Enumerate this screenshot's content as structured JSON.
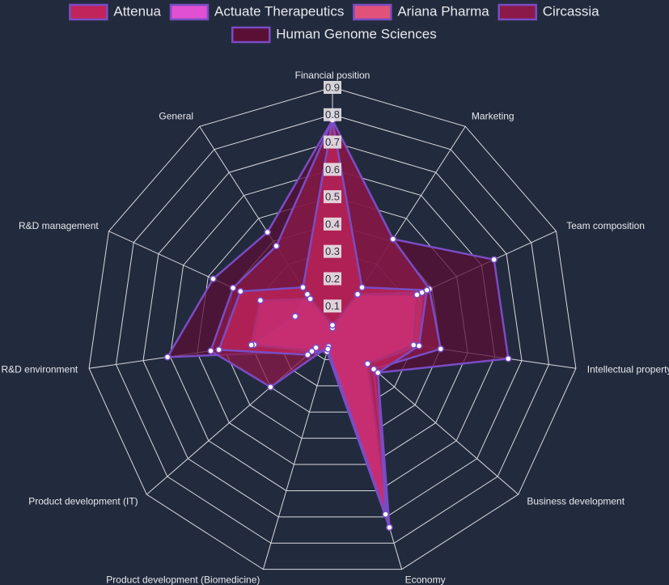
{
  "chart_data": {
    "type": "radar",
    "categories": [
      "Financial position",
      "Marketing",
      "Team composition",
      "Intellectual property",
      "Business development",
      "Economy",
      "Product development (Biomedicine)",
      "Product development (IT)",
      "R&D environment",
      "R&D management",
      "General"
    ],
    "ylim": [
      0,
      0.9
    ],
    "yticks": [
      0.1,
      0.2,
      0.3,
      0.4,
      0.5,
      0.6,
      0.7,
      0.8,
      0.9
    ],
    "grid": true,
    "series": [
      {
        "name": "Attenua",
        "color": "#c0245a",
        "values": [
          0.78,
          0.2,
          0.38,
          0.32,
          0.22,
          0.69,
          0.06,
          0.12,
          0.42,
          0.37,
          0.2
        ]
      },
      {
        "name": "Actuate Therapeutics",
        "color": "#e050d0",
        "values": [
          0.03,
          0.17,
          0.34,
          0.3,
          0.17,
          0.74,
          0.07,
          0.1,
          0.3,
          0.29,
          0.15
        ]
      },
      {
        "name": "Ariana Pharma",
        "color": "#e0527a",
        "values": [
          0.02,
          0.17,
          0.36,
          0.32,
          0.17,
          0.74,
          0.06,
          0.08,
          0.29,
          0.15,
          0.17
        ]
      },
      {
        "name": "Circassia",
        "color": "#8b1a48",
        "values": [
          0.78,
          0.41,
          0.39,
          0.4,
          0.2,
          0.74,
          0.05,
          0.3,
          0.45,
          0.4,
          0.38
        ]
      },
      {
        "name": "Human Genome Sciences",
        "color": "#5a0f35",
        "values": [
          0.78,
          0.41,
          0.65,
          0.65,
          0.22,
          0.74,
          0.05,
          0.1,
          0.61,
          0.48,
          0.44
        ]
      }
    ]
  }
}
